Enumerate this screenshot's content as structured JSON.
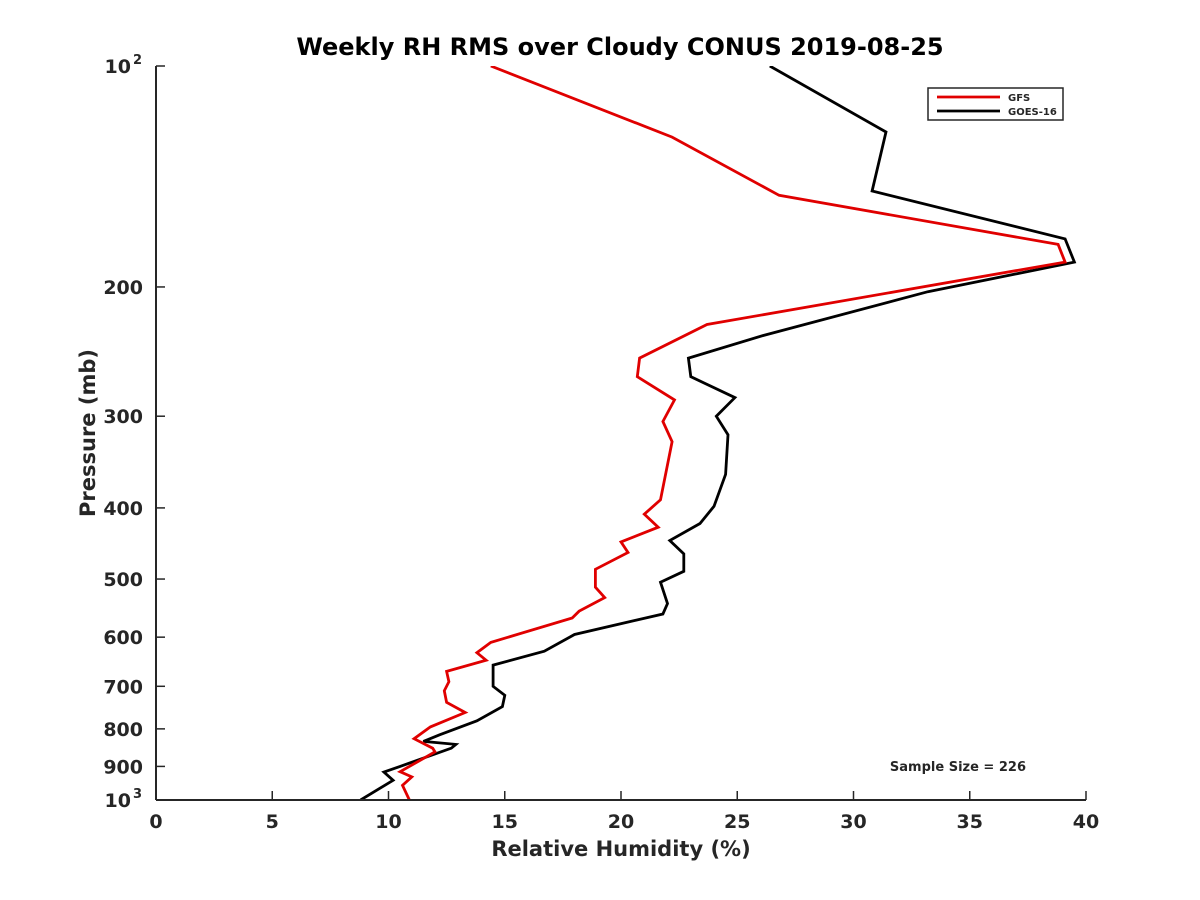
{
  "chart_data": {
    "type": "line",
    "title": "Weekly RH RMS over Cloudy CONUS 2019-08-25",
    "xlabel": "Relative Humidity (%)",
    "ylabel": "Pressure (mb)",
    "xlim": [
      0,
      40
    ],
    "ylim": [
      100,
      1000
    ],
    "y_scale": "log",
    "y_reversed": true,
    "x_ticks": [
      "0",
      "5",
      "10",
      "15",
      "20",
      "25",
      "30",
      "35",
      "40"
    ],
    "y_ticks": [
      {
        "value": 100,
        "base": "10",
        "exp": "2"
      },
      {
        "value": 200,
        "label": "200"
      },
      {
        "value": 300,
        "label": "300"
      },
      {
        "value": 400,
        "label": "400"
      },
      {
        "value": 500,
        "label": "500"
      },
      {
        "value": 600,
        "label": "600"
      },
      {
        "value": 700,
        "label": "700"
      },
      {
        "value": 800,
        "label": "800"
      },
      {
        "value": 900,
        "label": "900"
      },
      {
        "value": 1000,
        "base": "10",
        "exp": "3"
      }
    ],
    "legend_position": "top-right",
    "grid": false,
    "annotation": "Sample Size = 226",
    "series": [
      {
        "name": "GFS",
        "color": "#e00000",
        "points": [
          [
            14.4,
            100
          ],
          [
            22.2,
            125
          ],
          [
            26.8,
            150
          ],
          [
            38.8,
            175
          ],
          [
            39.1,
            185
          ],
          [
            23.7,
            225
          ],
          [
            20.8,
            250
          ],
          [
            20.7,
            265
          ],
          [
            22.3,
            285
          ],
          [
            21.8,
            305
          ],
          [
            22.2,
            325
          ],
          [
            21.7,
            390
          ],
          [
            21.0,
            408
          ],
          [
            21.6,
            425
          ],
          [
            20.0,
            445
          ],
          [
            20.3,
            460
          ],
          [
            18.9,
            485
          ],
          [
            18.9,
            513
          ],
          [
            19.3,
            530
          ],
          [
            18.2,
            553
          ],
          [
            17.9,
            565
          ],
          [
            14.4,
            610
          ],
          [
            13.8,
            630
          ],
          [
            14.2,
            645
          ],
          [
            12.5,
            668
          ],
          [
            12.6,
            690
          ],
          [
            12.4,
            710
          ],
          [
            12.5,
            736
          ],
          [
            13.3,
            760
          ],
          [
            11.8,
            795
          ],
          [
            11.1,
            825
          ],
          [
            11.9,
            850
          ],
          [
            12.0,
            860
          ],
          [
            10.5,
            915
          ],
          [
            11.0,
            930
          ],
          [
            10.6,
            955
          ],
          [
            10.9,
            1000
          ]
        ]
      },
      {
        "name": "GOES-16",
        "color": "#000000",
        "points": [
          [
            26.4,
            100
          ],
          [
            31.4,
            123
          ],
          [
            30.8,
            148
          ],
          [
            39.1,
            172
          ],
          [
            39.5,
            185
          ],
          [
            33.2,
            203
          ],
          [
            26.1,
            233
          ],
          [
            22.9,
            250
          ],
          [
            23.0,
            265
          ],
          [
            24.9,
            283
          ],
          [
            24.1,
            300
          ],
          [
            24.6,
            318
          ],
          [
            24.5,
            360
          ],
          [
            24.0,
            398
          ],
          [
            23.4,
            420
          ],
          [
            22.1,
            443
          ],
          [
            22.7,
            462
          ],
          [
            22.7,
            488
          ],
          [
            21.7,
            505
          ],
          [
            22.0,
            540
          ],
          [
            21.8,
            558
          ],
          [
            18.0,
            595
          ],
          [
            16.7,
            627
          ],
          [
            14.5,
            655
          ],
          [
            14.5,
            700
          ],
          [
            15.0,
            720
          ],
          [
            14.9,
            746
          ],
          [
            13.8,
            780
          ],
          [
            12.2,
            815
          ],
          [
            11.5,
            832
          ],
          [
            12.9,
            840
          ],
          [
            12.7,
            850
          ],
          [
            10.5,
            900
          ],
          [
            9.8,
            916
          ],
          [
            10.2,
            940
          ],
          [
            8.8,
            1000
          ]
        ]
      }
    ]
  }
}
